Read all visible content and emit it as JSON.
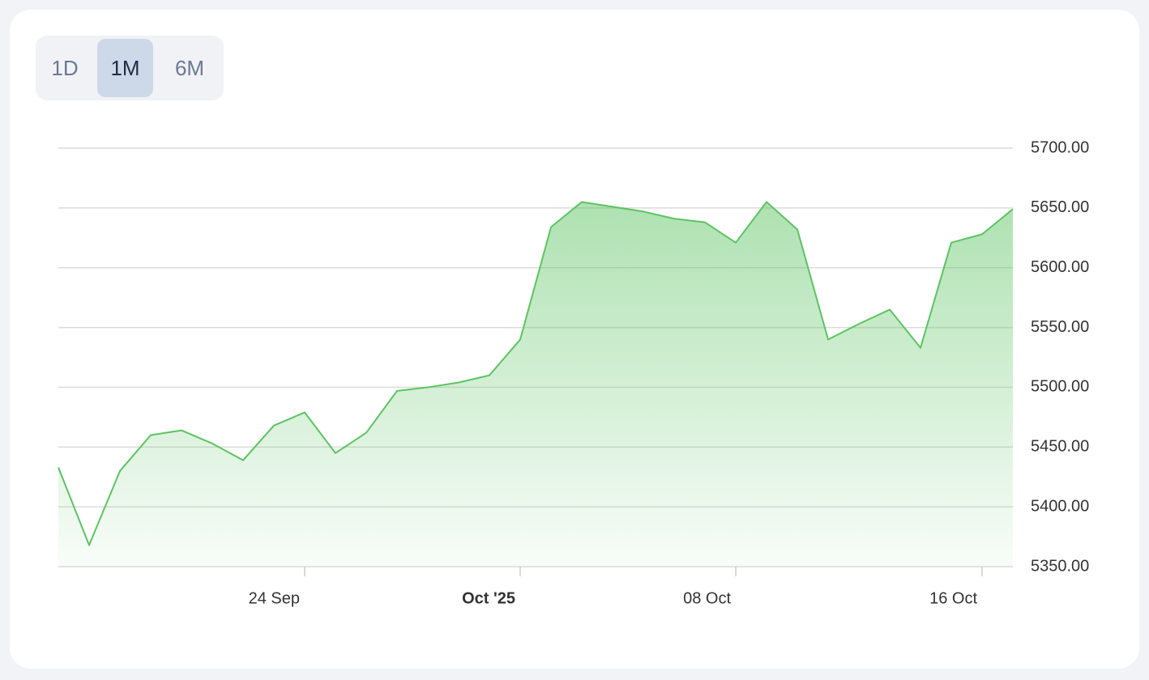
{
  "controls": {
    "buttons": [
      "1D",
      "1M",
      "6M"
    ]
  },
  "chart_data": {
    "type": "area",
    "x": [
      "2025-09-16",
      "2025-09-17",
      "2025-09-18",
      "2025-09-19",
      "2025-09-20",
      "2025-09-21",
      "2025-09-22",
      "2025-09-23",
      "2025-09-24",
      "2025-09-25",
      "2025-09-26",
      "2025-09-27",
      "2025-09-28",
      "2025-09-29",
      "2025-09-30",
      "2025-10-01",
      "2025-10-02",
      "2025-10-03",
      "2025-10-04",
      "2025-10-05",
      "2025-10-06",
      "2025-10-07",
      "2025-10-08",
      "2025-10-09",
      "2025-10-10",
      "2025-10-11",
      "2025-10-12",
      "2025-10-13",
      "2025-10-14",
      "2025-10-15",
      "2025-10-16",
      "2025-10-17"
    ],
    "values": [
      5433,
      5368,
      5430,
      5460,
      5464,
      5453,
      5439,
      5468,
      5479,
      5445,
      5462,
      5497,
      5500,
      5504,
      5510,
      5540,
      5634,
      5655,
      5651,
      5647,
      5641,
      5638,
      5621,
      5655,
      5632,
      5540,
      5553,
      5565,
      5533,
      5621,
      5628,
      5649
    ],
    "color": "#5cc462",
    "xlim": [
      "2025-09-16",
      "2025-10-17"
    ],
    "xticks": [
      {
        "value": "2025-09-24",
        "label": "24 Sep"
      },
      {
        "value": "2025-10-01",
        "label": "Oct '25"
      },
      {
        "value": "2025-10-08",
        "label": "08 Oct"
      },
      {
        "value": "2025-10-16",
        "label": "16 Oct"
      }
    ],
    "ylim": [
      5350,
      5700
    ],
    "yticks": [
      {
        "value": 5350,
        "label": "5350.00"
      },
      {
        "value": 5400,
        "label": "5400.00"
      },
      {
        "value": 5450,
        "label": "5450.00"
      },
      {
        "value": 5500,
        "label": "5500.00"
      },
      {
        "value": 5550,
        "label": "5550.00"
      },
      {
        "value": 5600,
        "label": "5600.00"
      },
      {
        "value": 5650,
        "label": "5650.00"
      },
      {
        "value": 5700,
        "label": "5700.00"
      }
    ],
    "grid": true
  }
}
